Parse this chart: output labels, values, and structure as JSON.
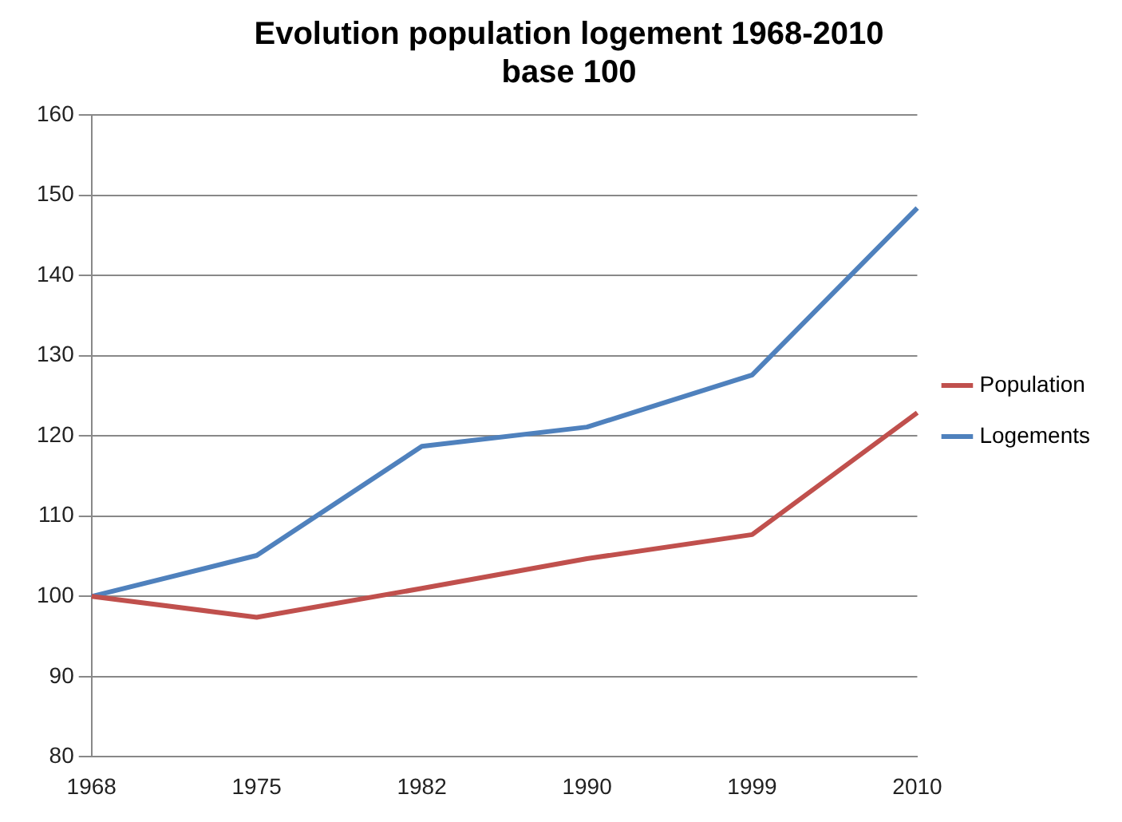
{
  "chart_data": {
    "type": "line",
    "title": "Evolution population logement 1968-2010\nbase 100",
    "categories": [
      "1968",
      "1975",
      "1982",
      "1990",
      "1999",
      "2010"
    ],
    "series": [
      {
        "name": "Population",
        "color": "#c0504d",
        "values": [
          100,
          97.4,
          101,
          104.7,
          107.7,
          122.9
        ]
      },
      {
        "name": "Logements",
        "color": "#4f81bd",
        "values": [
          100,
          105.1,
          118.7,
          121.1,
          127.6,
          148.4
        ]
      }
    ],
    "ylim": [
      80,
      160
    ],
    "yticks": [
      80,
      90,
      100,
      110,
      120,
      130,
      140,
      150,
      160
    ],
    "grid": "y",
    "legend": "right"
  }
}
